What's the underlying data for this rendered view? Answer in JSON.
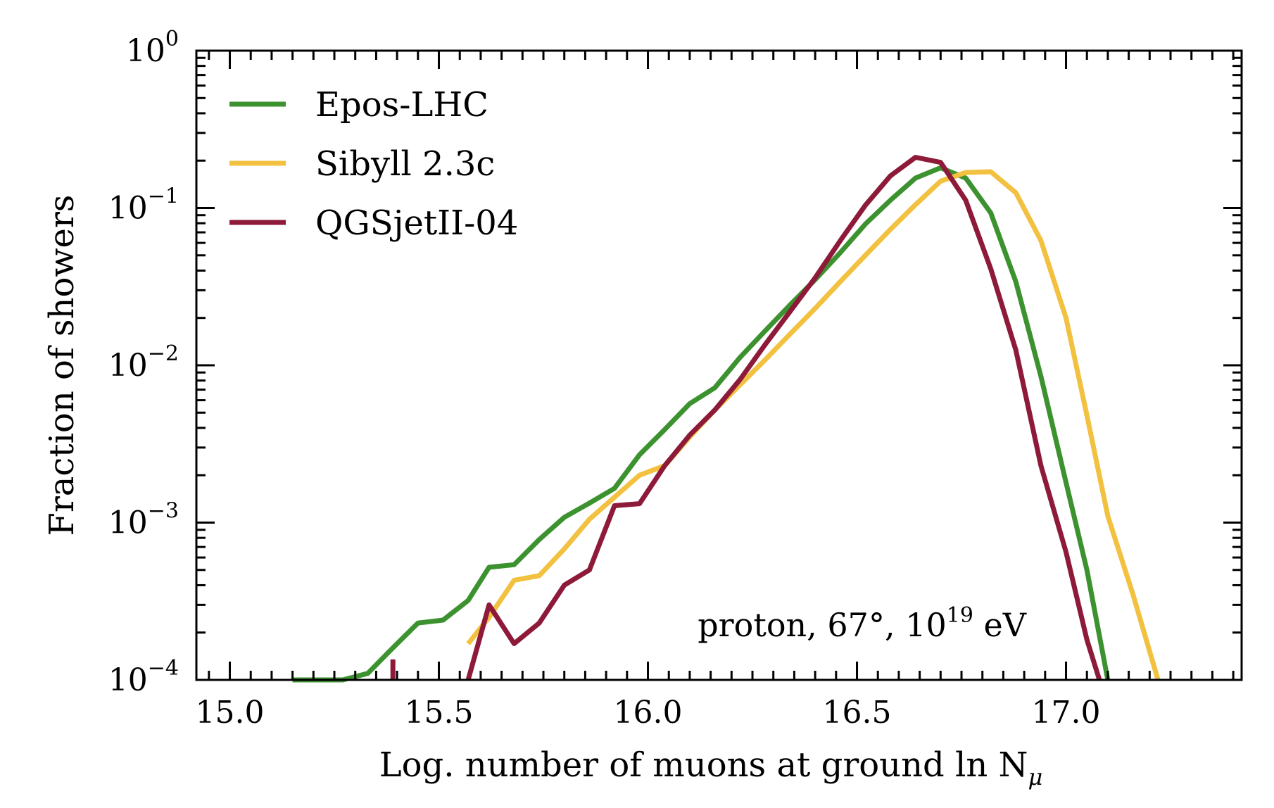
{
  "chart_data": {
    "type": "line",
    "xlabel": "Log. number of muons at ground ln N",
    "xlabel_math": "μ",
    "ylabel": "Fraction of showers",
    "xlim": [
      14.92,
      17.42
    ],
    "ylim": [
      0.0001,
      1
    ],
    "yscale": "log",
    "xticks": [
      "15.0",
      "15.5",
      "16.0",
      "16.5",
      "17.0"
    ],
    "yticks": [
      {
        "base": "10",
        "exp": "0"
      },
      {
        "base": "10",
        "exp": "−1"
      },
      {
        "base": "10",
        "exp": "−2"
      },
      {
        "base": "10",
        "exp": "−3"
      },
      {
        "base": "10",
        "exp": "−4"
      }
    ],
    "legend_position": "top-left",
    "annotation": {
      "prefix": "proton, 67°, 10",
      "exp": "19",
      "suffix": " eV"
    },
    "series": [
      {
        "name": "Epos-LHC",
        "color": "#3d9230",
        "x": [
          15.15,
          15.27,
          15.33,
          15.39,
          15.45,
          15.51,
          15.57,
          15.62,
          15.68,
          15.74,
          15.8,
          15.86,
          15.92,
          15.98,
          16.04,
          16.1,
          16.16,
          16.22,
          16.28,
          16.34,
          16.4,
          16.46,
          16.52,
          16.58,
          16.64,
          16.7,
          16.76,
          16.82,
          16.88,
          16.94,
          17.0,
          17.05,
          17.1
        ],
        "y": [
          0.0001,
          0.0001,
          0.00011,
          0.00016,
          0.00023,
          0.00024,
          0.00032,
          0.00052,
          0.00054,
          0.00078,
          0.00108,
          0.00133,
          0.00165,
          0.0027,
          0.0039,
          0.0057,
          0.0072,
          0.0112,
          0.0165,
          0.0242,
          0.035,
          0.052,
          0.079,
          0.112,
          0.155,
          0.18,
          0.155,
          0.093,
          0.034,
          0.0085,
          0.0018,
          0.0005,
          0.0001
        ]
      },
      {
        "name": "Sibyll 2.3c",
        "color": "#f2c140",
        "x": [
          15.57,
          15.62,
          15.68,
          15.74,
          15.8,
          15.86,
          15.92,
          15.98,
          16.04,
          16.1,
          16.16,
          16.22,
          16.28,
          16.34,
          16.4,
          16.46,
          16.52,
          16.58,
          16.64,
          16.7,
          16.76,
          16.82,
          16.88,
          16.94,
          17.0,
          17.05,
          17.1,
          17.16,
          17.22
        ],
        "y": [
          0.00017,
          0.00025,
          0.00043,
          0.00046,
          0.00068,
          0.00105,
          0.00145,
          0.002,
          0.0023,
          0.0035,
          0.0052,
          0.0075,
          0.0108,
          0.0158,
          0.023,
          0.034,
          0.05,
          0.073,
          0.105,
          0.148,
          0.168,
          0.17,
          0.125,
          0.062,
          0.02,
          0.0048,
          0.0011,
          0.00035,
          0.0001
        ]
      },
      {
        "name": "QGSjetII-04",
        "color": "#8e1a3a",
        "segments": [
          {
            "x": [
              15.39,
              15.39
            ],
            "y": [
              0.0001,
              0.000135
            ]
          },
          {
            "x": [
              15.57,
              15.62,
              15.68,
              15.74,
              15.8,
              15.86,
              15.92,
              15.98,
              16.04,
              16.1,
              16.16,
              16.22,
              16.28,
              16.34,
              16.4,
              16.46,
              16.52,
              16.58,
              16.64,
              16.7,
              16.76,
              16.82,
              16.88,
              16.94,
              17.0,
              17.05,
              17.08
            ],
            "y": [
              0.0001,
              0.0003,
              0.00017,
              0.00023,
              0.0004,
              0.0005,
              0.00128,
              0.00132,
              0.0023,
              0.0036,
              0.0052,
              0.0081,
              0.0135,
              0.022,
              0.036,
              0.062,
              0.104,
              0.16,
              0.21,
              0.195,
              0.112,
              0.041,
              0.0125,
              0.0023,
              0.00065,
              0.00018,
              0.0001
            ]
          }
        ]
      }
    ]
  }
}
